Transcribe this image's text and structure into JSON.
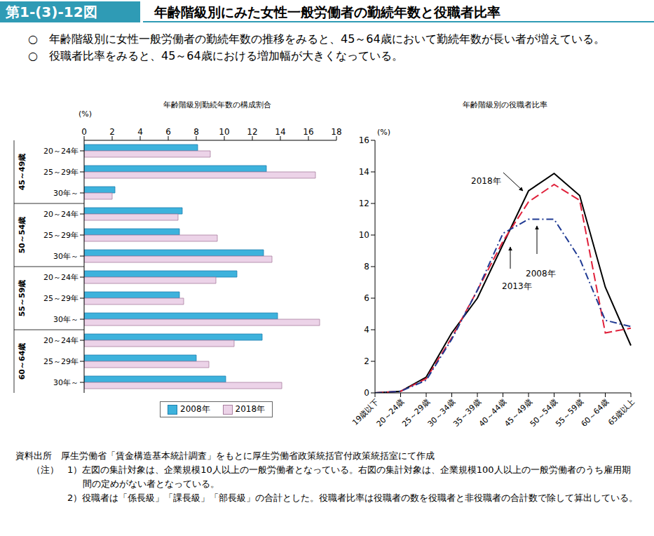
{
  "header": {
    "figure_no": "第1-(3)-12図",
    "title": "年齢階級別にみた女性一般労働者の勤続年数と役職者比率"
  },
  "summary": [
    "○　年齢階級別に女性一般労働者の勤続年数の推移をみると、45～64歳において勤続年数が長い者が増えている。",
    "○　役職者比率をみると、45～64歳における増加幅が大きくなっている。"
  ],
  "chart_data": [
    {
      "type": "bar",
      "orientation": "horizontal",
      "title": "年齢階級別勤続年数の構成割合",
      "x_label": "(%)",
      "groups": [
        "45～49歳",
        "50～54歳",
        "55～59歳",
        "60～64歳"
      ],
      "categories": [
        "20～24年",
        "25～29年",
        "30年～",
        "20～24年",
        "25～29年",
        "30年～",
        "20～24年",
        "25～29年",
        "30年～",
        "20～24年",
        "25～29年",
        "30年～"
      ],
      "series": [
        {
          "name": "2008年",
          "color": "#3db2dc",
          "values": [
            8.1,
            13.0,
            2.2,
            7.0,
            6.8,
            12.8,
            10.9,
            6.8,
            13.8,
            12.7,
            8.0,
            10.1
          ]
        },
        {
          "name": "2018年",
          "color": "#ecd3e8",
          "values": [
            9.0,
            16.5,
            2.0,
            6.7,
            9.5,
            13.4,
            9.4,
            7.1,
            16.8,
            10.7,
            8.9,
            14.1
          ]
        }
      ],
      "xlim": [
        0,
        18
      ],
      "xticks": [
        0,
        2,
        4,
        6,
        8,
        10,
        12,
        14,
        16,
        18
      ],
      "legend": "bottom",
      "grid": false
    },
    {
      "type": "line",
      "title": "年齢階級別の役職者比率",
      "y_label": "(%)",
      "categories": [
        "19歳以下",
        "20～24歳",
        "25～29歳",
        "30～34歳",
        "35～39歳",
        "40～44歳",
        "45～49歳",
        "50～54歳",
        "55～59歳",
        "60～64歳",
        "65歳以上"
      ],
      "series": [
        {
          "name": "2018年",
          "color": "#000000",
          "line_style": "solid",
          "values": [
            0,
            0.1,
            1.0,
            3.8,
            6.0,
            9.4,
            12.8,
            13.9,
            12.5,
            6.7,
            3.0
          ]
        },
        {
          "name": "2013年",
          "color": "#e0203a",
          "line_style": "dashed",
          "values": [
            0,
            0.1,
            0.9,
            3.5,
            6.5,
            9.6,
            12.1,
            13.2,
            12.2,
            3.8,
            4.1
          ]
        },
        {
          "name": "2008年",
          "color": "#1f3a93",
          "line_style": "dashdot",
          "values": [
            0,
            0.1,
            0.8,
            3.4,
            6.5,
            10.1,
            11.0,
            11.0,
            8.5,
            4.6,
            4.2
          ]
        }
      ],
      "ylim": [
        0,
        16
      ],
      "yticks": [
        0,
        2,
        4,
        6,
        8,
        10,
        12,
        14,
        16
      ],
      "grid": false
    }
  ],
  "source": "資料出所　厚生労働省「賃金構造基本統計調査」をもとに厚生労働省政策統括官付政策統括室にて作成",
  "notes_label": "（注）",
  "notes": [
    "1）左図の集計対象は、企業規模10人以上の一般労働者となっている。右図の集計対象は、企業規模100人以上の一般労働者のうち雇用期間の定めがない者となっている。",
    "2）役職者は「係長級」「課長級」「部長級」の合計とした。役職者比率は役職者の数を役職者と非役職者の合計数で除して算出している。"
  ]
}
